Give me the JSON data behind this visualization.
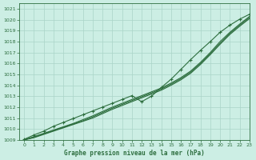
{
  "title": "Graphe pression niveau de la mer (hPa)",
  "bg_color": "#cceee4",
  "grid_color": "#aad4c8",
  "line_color": "#2d6e3e",
  "xlim": [
    -0.5,
    23
  ],
  "ylim": [
    1009,
    1021.5
  ],
  "xticks": [
    0,
    1,
    2,
    3,
    4,
    5,
    6,
    7,
    8,
    9,
    10,
    11,
    12,
    13,
    14,
    15,
    16,
    17,
    18,
    19,
    20,
    21,
    22,
    23
  ],
  "yticks": [
    1009,
    1010,
    1011,
    1012,
    1013,
    1014,
    1015,
    1016,
    1017,
    1018,
    1019,
    1020,
    1021
  ],
  "series_smooth1": [
    1009.0,
    1009.3,
    1009.6,
    1009.9,
    1010.2,
    1010.5,
    1010.85,
    1011.2,
    1011.6,
    1012.0,
    1012.35,
    1012.7,
    1013.05,
    1013.4,
    1013.75,
    1014.2,
    1014.7,
    1015.3,
    1016.1,
    1017.0,
    1018.0,
    1018.85,
    1019.6,
    1020.3
  ],
  "series_smooth2": [
    1009.0,
    1009.25,
    1009.55,
    1009.85,
    1010.15,
    1010.45,
    1010.75,
    1011.1,
    1011.5,
    1011.9,
    1012.25,
    1012.6,
    1012.95,
    1013.3,
    1013.65,
    1014.1,
    1014.6,
    1015.2,
    1016.0,
    1016.9,
    1017.85,
    1018.75,
    1019.5,
    1020.2
  ],
  "series_smooth3": [
    1009.0,
    1009.2,
    1009.5,
    1009.8,
    1010.1,
    1010.4,
    1010.7,
    1011.0,
    1011.4,
    1011.8,
    1012.15,
    1012.5,
    1012.85,
    1013.2,
    1013.55,
    1014.0,
    1014.5,
    1015.1,
    1015.9,
    1016.8,
    1017.75,
    1018.65,
    1019.4,
    1020.1
  ],
  "series_marker": [
    1009.05,
    1009.45,
    1009.8,
    1010.25,
    1010.6,
    1010.95,
    1011.3,
    1011.65,
    1012.0,
    1012.35,
    1012.7,
    1013.05,
    1012.5,
    1013.0,
    1013.8,
    1014.55,
    1015.45,
    1016.35,
    1017.2,
    1018.0,
    1018.85,
    1019.5,
    1020.05,
    1020.5
  ]
}
